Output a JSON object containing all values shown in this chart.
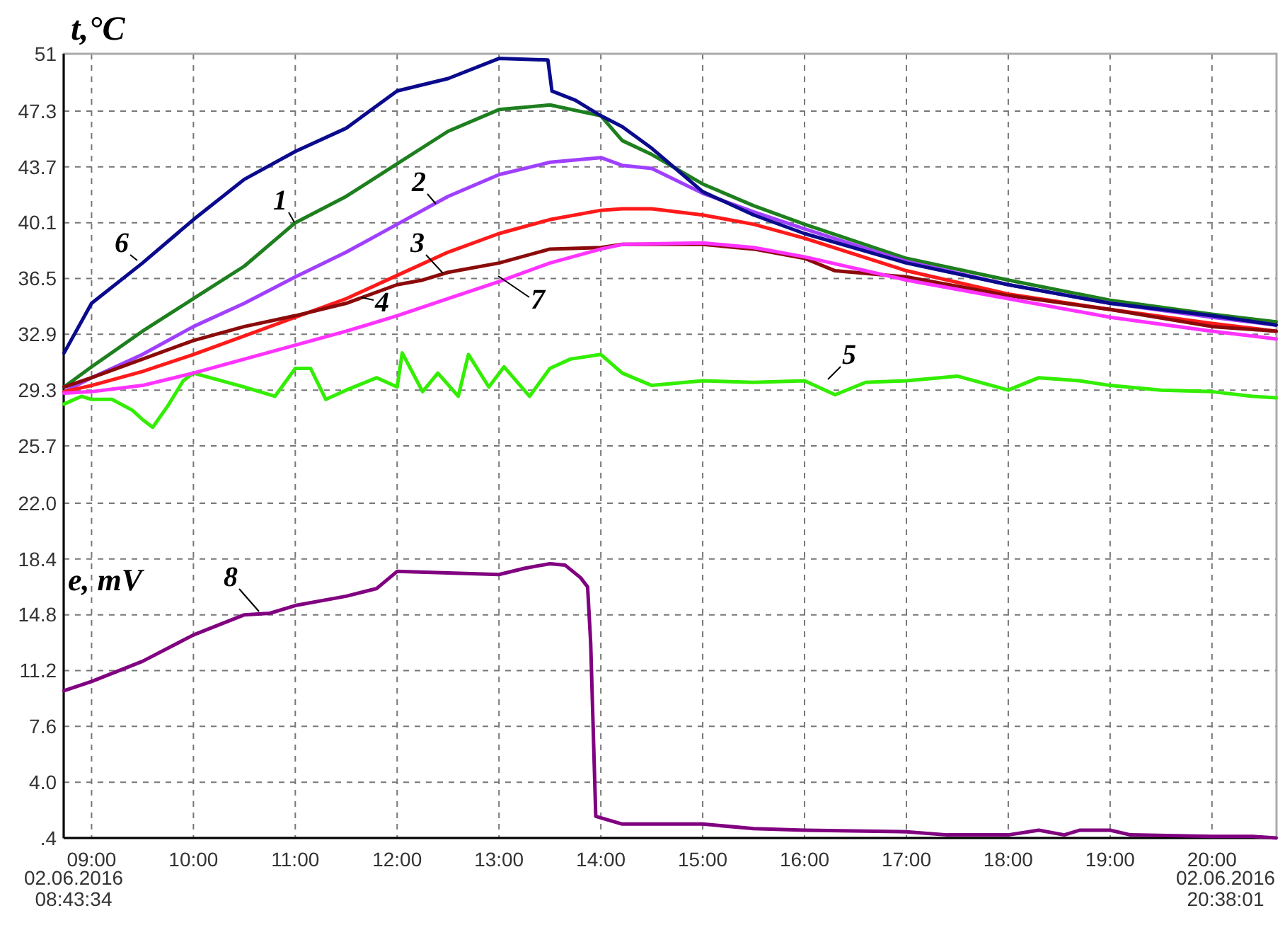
{
  "chart_data": {
    "type": "line",
    "ylabel": "t,°C",
    "xlim": [
      8.7261,
      20.6336
    ],
    "ylim": [
      0.4,
      51
    ],
    "xticks": [
      {
        "value": 9,
        "label": "09:00"
      },
      {
        "value": 10,
        "label": "10:00"
      },
      {
        "value": 11,
        "label": "11:00"
      },
      {
        "value": 12,
        "label": "12:00"
      },
      {
        "value": 13,
        "label": "13:00"
      },
      {
        "value": 14,
        "label": "14:00"
      },
      {
        "value": 15,
        "label": "15:00"
      },
      {
        "value": 16,
        "label": "16:00"
      },
      {
        "value": 17,
        "label": "17:00"
      },
      {
        "value": 18,
        "label": "18:00"
      },
      {
        "value": 19,
        "label": "19:00"
      },
      {
        "value": 20,
        "label": "20:00"
      }
    ],
    "yticks": [
      {
        "value": 0.4,
        "label": ".4"
      },
      {
        "value": 4,
        "label": "4.0"
      },
      7.6,
      11.2,
      14.8,
      18.4,
      {
        "value": 22,
        "label": "22.0"
      },
      25.7,
      29.3,
      32.9,
      36.5,
      40.1,
      43.7,
      47.3,
      51
    ],
    "grid": true,
    "marker": "none",
    "line_style": "solid",
    "annotations": [
      "e, mV",
      "02.06.2016 08:43:34",
      "02.06.2016 20:38:01"
    ],
    "series": [
      {
        "name": "1",
        "color": "#1e7f1e",
        "x": [
          8.73,
          9,
          9.5,
          10,
          10.5,
          11,
          11.5,
          12,
          12.5,
          13,
          13.5,
          14,
          14.21,
          14.5,
          15,
          15.5,
          16,
          17,
          18,
          19,
          20,
          20.63
        ],
        "values": [
          29.5,
          30.8,
          33.1,
          35.2,
          37.3,
          40.1,
          41.8,
          43.9,
          46.0,
          47.4,
          47.7,
          47.0,
          45.4,
          44.5,
          42.6,
          41.2,
          40.0,
          37.8,
          36.4,
          35.1,
          34.2,
          33.7
        ]
      },
      {
        "name": "2",
        "color": "#a040ff",
        "x": [
          8.73,
          9,
          9.5,
          10,
          10.5,
          11,
          11.5,
          12,
          12.5,
          13,
          13.5,
          14,
          14.21,
          14.5,
          15,
          15.5,
          16,
          17,
          18,
          19,
          20,
          20.63
        ],
        "values": [
          29.2,
          30.1,
          31.6,
          33.4,
          34.9,
          36.6,
          38.2,
          40.0,
          41.8,
          43.2,
          44.0,
          44.3,
          43.8,
          43.6,
          42.0,
          40.8,
          39.7,
          37.6,
          36.1,
          34.9,
          34.0,
          33.5
        ]
      },
      {
        "name": "3",
        "color": "#ff1a1a",
        "x": [
          8.73,
          9,
          9.5,
          10,
          10.5,
          11,
          11.5,
          12,
          12.5,
          13,
          13.5,
          14,
          14.21,
          14.5,
          15,
          15.5,
          16,
          17,
          18,
          19,
          20,
          20.63
        ],
        "values": [
          29.2,
          29.6,
          30.5,
          31.6,
          32.8,
          34.0,
          35.2,
          36.7,
          38.2,
          39.4,
          40.3,
          40.9,
          41.0,
          41.0,
          40.6,
          40.0,
          39.1,
          37.0,
          35.5,
          34.5,
          33.6,
          33.1
        ]
      },
      {
        "name": "4",
        "color": "#8b0a0a",
        "x": [
          8.73,
          9,
          9.5,
          10,
          10.5,
          11,
          11.5,
          12,
          12.25,
          12.5,
          13,
          13.5,
          14,
          14.21,
          14.5,
          15,
          15.5,
          16,
          16.3,
          17,
          18,
          19,
          20,
          20.63
        ],
        "values": [
          29.5,
          30.1,
          31.3,
          32.5,
          33.4,
          34.1,
          34.9,
          36.1,
          36.4,
          36.9,
          37.5,
          38.4,
          38.5,
          38.7,
          38.7,
          38.7,
          38.4,
          37.8,
          37.0,
          36.6,
          35.4,
          34.5,
          33.4,
          33.1
        ]
      },
      {
        "name": "5",
        "color": "#33ee00",
        "x": [
          8.73,
          8.9,
          9,
          9.2,
          9.4,
          9.5,
          9.6,
          9.75,
          9.9,
          10,
          10.5,
          10.8,
          11,
          11.15,
          11.3,
          11.5,
          11.8,
          12,
          12.05,
          12.25,
          12.4,
          12.6,
          12.7,
          12.9,
          13.05,
          13.3,
          13.5,
          13.7,
          14,
          14.21,
          14.5,
          15,
          15.5,
          16,
          16.3,
          16.6,
          17,
          17.5,
          18,
          18.3,
          18.7,
          19,
          19.5,
          20,
          20.4,
          20.63
        ],
        "values": [
          28.4,
          28.9,
          28.7,
          28.7,
          28.0,
          27.4,
          26.9,
          28.3,
          29.9,
          30.4,
          29.5,
          28.9,
          30.7,
          30.7,
          28.7,
          29.3,
          30.1,
          29.5,
          31.7,
          29.2,
          30.4,
          28.9,
          31.6,
          29.5,
          30.8,
          28.9,
          30.7,
          31.3,
          31.6,
          30.4,
          29.6,
          29.9,
          29.8,
          29.9,
          29.0,
          29.8,
          29.9,
          30.2,
          29.3,
          30.1,
          29.9,
          29.6,
          29.3,
          29.2,
          28.9,
          28.8
        ]
      },
      {
        "name": "6",
        "color": "#0a0a8c",
        "x": [
          8.73,
          9,
          9.5,
          10,
          10.5,
          11,
          11.5,
          12,
          12.5,
          13,
          13.48,
          13.52,
          13.75,
          14,
          14.21,
          14.5,
          15,
          15.5,
          16,
          17,
          18,
          19,
          20,
          20.63
        ],
        "values": [
          31.7,
          34.9,
          37.5,
          40.3,
          42.9,
          44.7,
          46.2,
          48.6,
          49.4,
          50.7,
          50.6,
          48.6,
          48.0,
          47.0,
          46.3,
          44.9,
          42.1,
          40.6,
          39.4,
          37.5,
          36.1,
          34.9,
          34.1,
          33.5
        ]
      },
      {
        "name": "7",
        "color": "#ff33ff",
        "x": [
          8.73,
          9,
          9.5,
          10,
          10.5,
          11,
          11.5,
          12,
          12.5,
          13,
          13.5,
          14,
          14.21,
          15,
          15.5,
          16,
          17,
          18,
          19,
          20,
          20.63
        ],
        "values": [
          29.1,
          29.2,
          29.6,
          30.4,
          31.3,
          32.2,
          33.1,
          34.1,
          35.2,
          36.3,
          37.5,
          38.4,
          38.7,
          38.8,
          38.5,
          37.9,
          36.4,
          35.2,
          34.0,
          33.1,
          32.6
        ]
      },
      {
        "name": "8",
        "color": "#800080",
        "x": [
          8.73,
          9,
          9.5,
          10,
          10.5,
          10.75,
          11,
          11.5,
          11.8,
          12,
          12.5,
          13,
          13.25,
          13.5,
          13.65,
          13.8,
          13.87,
          13.9,
          13.95,
          14.05,
          14.21,
          14.5,
          15,
          15.5,
          16,
          17,
          17.4,
          18,
          18.3,
          18.55,
          18.7,
          19,
          19.2,
          20,
          20.4,
          20.63
        ],
        "values": [
          9.9,
          10.5,
          11.8,
          13.5,
          14.8,
          14.9,
          15.4,
          16.0,
          16.5,
          17.6,
          17.5,
          17.4,
          17.8,
          18.1,
          18.0,
          17.2,
          16.6,
          13.0,
          1.8,
          1.6,
          1.3,
          1.3,
          1.3,
          1.0,
          0.9,
          0.8,
          0.6,
          0.6,
          0.9,
          0.6,
          0.9,
          0.9,
          0.6,
          0.5,
          0.5,
          0.4
        ]
      }
    ]
  }
}
